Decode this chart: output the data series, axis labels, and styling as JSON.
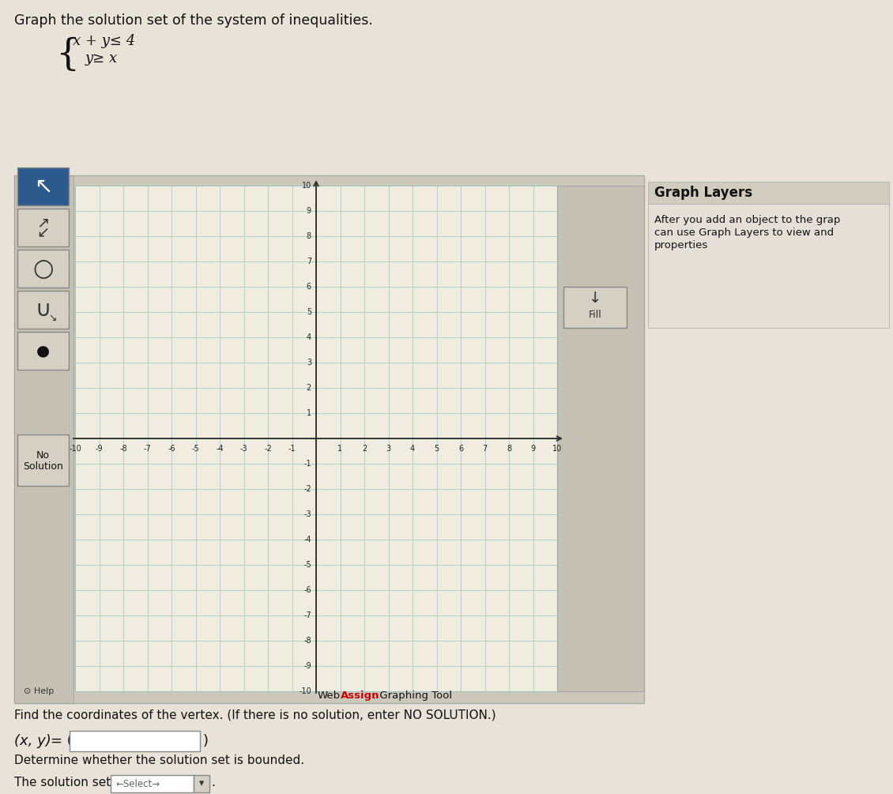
{
  "title_text": "Graph the solution set of the system of inequalities.",
  "ineq1": "x + y≤ 4",
  "ineq2": "y≥ x",
  "grid_color": "#88c4c4",
  "axis_color": "#333333",
  "bg_color": "#e8e2d8",
  "graph_bg": "#f0ece0",
  "panel_bg": "#ccc8bc",
  "toolbar_bg": "#c4c0b4",
  "btn_bg": "#d4d0c4",
  "btn_selected_bg": "#2c5a8c",
  "graph_layers_bg": "#e4e0d8",
  "graph_layers_title_bg": "#d0ccc0",
  "webassign_red": "#cc0000",
  "vertex_label": "Find the coordinates of the vertex. (If there is no solution, enter NO SOLUTION.)",
  "xy_label": "(x, y) = (",
  "bounded_label": "Determine whether the solution set is bounded.",
  "select_label": "The solution set is",
  "graph_layers_title": "Graph Layers",
  "graph_layers_desc1": "After you add an object to the grap",
  "graph_layers_desc2": "can use Graph Layers to view and",
  "graph_layers_desc3": "properties",
  "fill_button": "Fill",
  "help_text": "Help"
}
